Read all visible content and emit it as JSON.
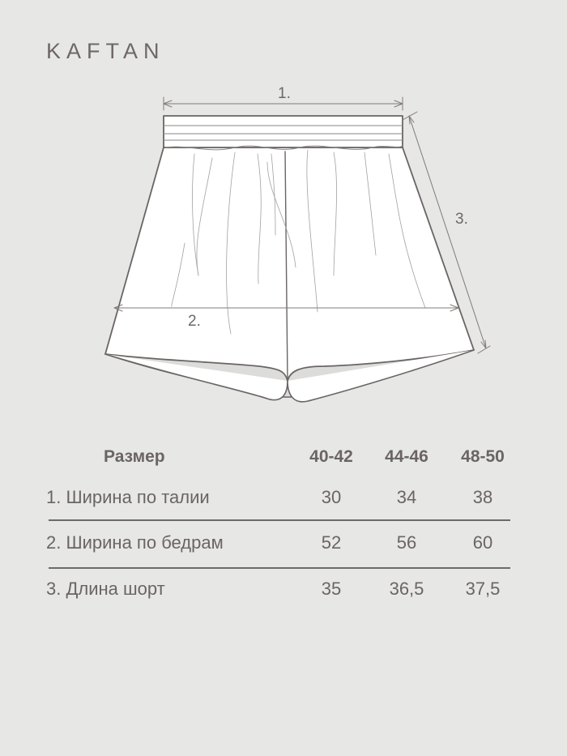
{
  "brand": "KAFTAN",
  "diagram": {
    "labels": [
      "1.",
      "2.",
      "3."
    ]
  },
  "table": {
    "header": {
      "label": "Размер",
      "sizes": [
        "40-42",
        "44-46",
        "48-50"
      ]
    },
    "rows": [
      {
        "label": "1.  Ширина по талии",
        "values": [
          "30",
          "34",
          "38"
        ]
      },
      {
        "label": "2. Ширина по бедрам",
        "values": [
          "52",
          "56",
          "60"
        ]
      },
      {
        "label": "3. Длина шорт",
        "values": [
          "35",
          "36,5",
          "37,5"
        ]
      }
    ]
  }
}
